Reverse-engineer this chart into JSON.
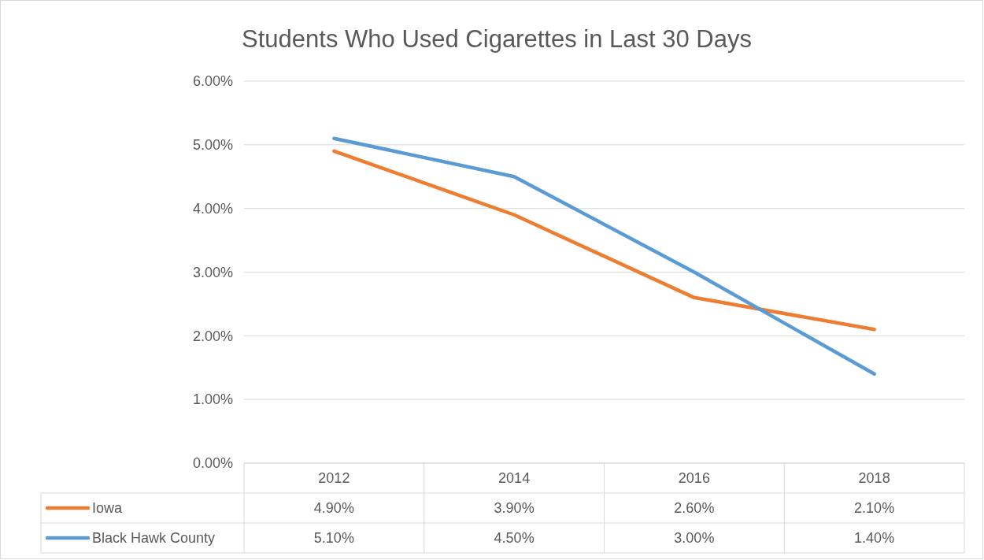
{
  "chart_data": {
    "type": "line",
    "title": "Students Who Used Cigarettes in Last 30 Days",
    "categories": [
      "2012",
      "2014",
      "2016",
      "2018"
    ],
    "series": [
      {
        "name": "Iowa",
        "color": "#ed7d31",
        "values": [
          4.9,
          3.9,
          2.6,
          2.1
        ],
        "value_labels": [
          "4.90%",
          "3.90%",
          "2.60%",
          "2.10%"
        ]
      },
      {
        "name": "Black Hawk County",
        "color": "#5b9bd5",
        "values": [
          5.1,
          4.5,
          3.0,
          1.4
        ],
        "value_labels": [
          "5.10%",
          "4.50%",
          "3.00%",
          "1.40%"
        ]
      }
    ],
    "ylim": [
      0,
      6
    ],
    "yticks": [
      {
        "value": 0,
        "label": "0.00%"
      },
      {
        "value": 1,
        "label": "1.00%"
      },
      {
        "value": 2,
        "label": "2.00%"
      },
      {
        "value": 3,
        "label": "3.00%"
      },
      {
        "value": 4,
        "label": "4.00%"
      },
      {
        "value": 5,
        "label": "5.00%"
      },
      {
        "value": 6,
        "label": "6.00%"
      }
    ],
    "grid": "y",
    "legend": "bottom",
    "marker": "none",
    "line_style": "solid"
  }
}
